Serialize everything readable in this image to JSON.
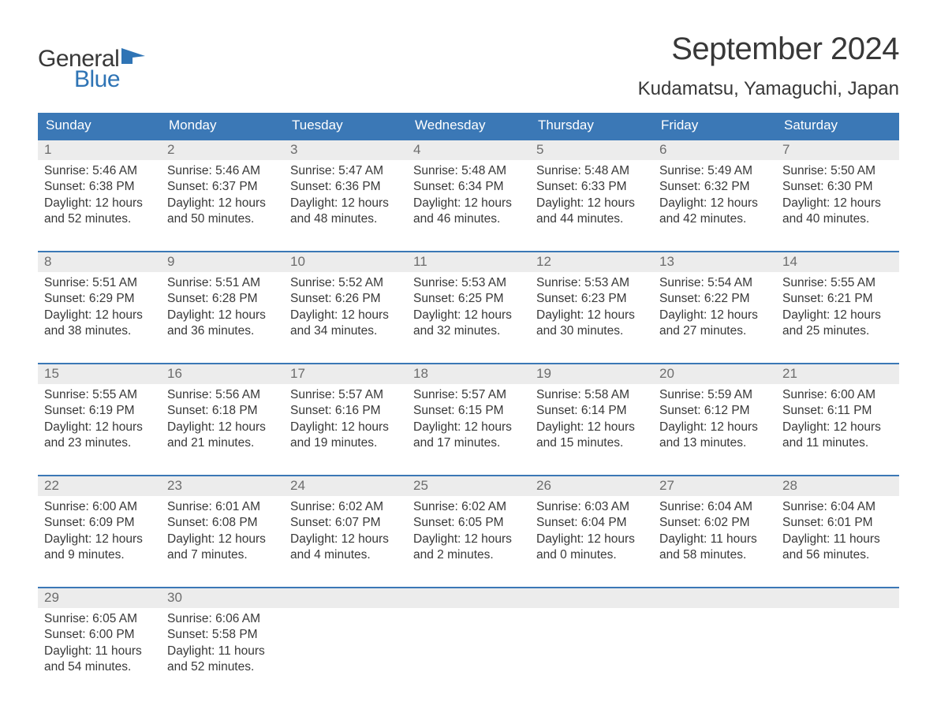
{
  "brand": {
    "general": "General",
    "blue": "Blue"
  },
  "title": "September 2024",
  "location": "Kudamatsu, Yamaguchi, Japan",
  "colors": {
    "header_bg": "#3b78b6",
    "header_text": "#ffffff",
    "daynum_bg": "#ececec",
    "daynum_text": "#6d6d6d",
    "body_text": "#383838",
    "rule": "#3b78b6",
    "brand_blue": "#2f74b5",
    "page_bg": "#ffffff"
  },
  "typography": {
    "title_fontsize": 40,
    "location_fontsize": 24,
    "dow_fontsize": 17,
    "daynum_fontsize": 17,
    "body_fontsize": 15.5,
    "font_family": "Arial"
  },
  "days_of_week": [
    "Sunday",
    "Monday",
    "Tuesday",
    "Wednesday",
    "Thursday",
    "Friday",
    "Saturday"
  ],
  "weeks": [
    [
      {
        "n": "1",
        "sr": "Sunrise: 5:46 AM",
        "ss": "Sunset: 6:38 PM",
        "d1": "Daylight: 12 hours",
        "d2": "and 52 minutes."
      },
      {
        "n": "2",
        "sr": "Sunrise: 5:46 AM",
        "ss": "Sunset: 6:37 PM",
        "d1": "Daylight: 12 hours",
        "d2": "and 50 minutes."
      },
      {
        "n": "3",
        "sr": "Sunrise: 5:47 AM",
        "ss": "Sunset: 6:36 PM",
        "d1": "Daylight: 12 hours",
        "d2": "and 48 minutes."
      },
      {
        "n": "4",
        "sr": "Sunrise: 5:48 AM",
        "ss": "Sunset: 6:34 PM",
        "d1": "Daylight: 12 hours",
        "d2": "and 46 minutes."
      },
      {
        "n": "5",
        "sr": "Sunrise: 5:48 AM",
        "ss": "Sunset: 6:33 PM",
        "d1": "Daylight: 12 hours",
        "d2": "and 44 minutes."
      },
      {
        "n": "6",
        "sr": "Sunrise: 5:49 AM",
        "ss": "Sunset: 6:32 PM",
        "d1": "Daylight: 12 hours",
        "d2": "and 42 minutes."
      },
      {
        "n": "7",
        "sr": "Sunrise: 5:50 AM",
        "ss": "Sunset: 6:30 PM",
        "d1": "Daylight: 12 hours",
        "d2": "and 40 minutes."
      }
    ],
    [
      {
        "n": "8",
        "sr": "Sunrise: 5:51 AM",
        "ss": "Sunset: 6:29 PM",
        "d1": "Daylight: 12 hours",
        "d2": "and 38 minutes."
      },
      {
        "n": "9",
        "sr": "Sunrise: 5:51 AM",
        "ss": "Sunset: 6:28 PM",
        "d1": "Daylight: 12 hours",
        "d2": "and 36 minutes."
      },
      {
        "n": "10",
        "sr": "Sunrise: 5:52 AM",
        "ss": "Sunset: 6:26 PM",
        "d1": "Daylight: 12 hours",
        "d2": "and 34 minutes."
      },
      {
        "n": "11",
        "sr": "Sunrise: 5:53 AM",
        "ss": "Sunset: 6:25 PM",
        "d1": "Daylight: 12 hours",
        "d2": "and 32 minutes."
      },
      {
        "n": "12",
        "sr": "Sunrise: 5:53 AM",
        "ss": "Sunset: 6:23 PM",
        "d1": "Daylight: 12 hours",
        "d2": "and 30 minutes."
      },
      {
        "n": "13",
        "sr": "Sunrise: 5:54 AM",
        "ss": "Sunset: 6:22 PM",
        "d1": "Daylight: 12 hours",
        "d2": "and 27 minutes."
      },
      {
        "n": "14",
        "sr": "Sunrise: 5:55 AM",
        "ss": "Sunset: 6:21 PM",
        "d1": "Daylight: 12 hours",
        "d2": "and 25 minutes."
      }
    ],
    [
      {
        "n": "15",
        "sr": "Sunrise: 5:55 AM",
        "ss": "Sunset: 6:19 PM",
        "d1": "Daylight: 12 hours",
        "d2": "and 23 minutes."
      },
      {
        "n": "16",
        "sr": "Sunrise: 5:56 AM",
        "ss": "Sunset: 6:18 PM",
        "d1": "Daylight: 12 hours",
        "d2": "and 21 minutes."
      },
      {
        "n": "17",
        "sr": "Sunrise: 5:57 AM",
        "ss": "Sunset: 6:16 PM",
        "d1": "Daylight: 12 hours",
        "d2": "and 19 minutes."
      },
      {
        "n": "18",
        "sr": "Sunrise: 5:57 AM",
        "ss": "Sunset: 6:15 PM",
        "d1": "Daylight: 12 hours",
        "d2": "and 17 minutes."
      },
      {
        "n": "19",
        "sr": "Sunrise: 5:58 AM",
        "ss": "Sunset: 6:14 PM",
        "d1": "Daylight: 12 hours",
        "d2": "and 15 minutes."
      },
      {
        "n": "20",
        "sr": "Sunrise: 5:59 AM",
        "ss": "Sunset: 6:12 PM",
        "d1": "Daylight: 12 hours",
        "d2": "and 13 minutes."
      },
      {
        "n": "21",
        "sr": "Sunrise: 6:00 AM",
        "ss": "Sunset: 6:11 PM",
        "d1": "Daylight: 12 hours",
        "d2": "and 11 minutes."
      }
    ],
    [
      {
        "n": "22",
        "sr": "Sunrise: 6:00 AM",
        "ss": "Sunset: 6:09 PM",
        "d1": "Daylight: 12 hours",
        "d2": "and 9 minutes."
      },
      {
        "n": "23",
        "sr": "Sunrise: 6:01 AM",
        "ss": "Sunset: 6:08 PM",
        "d1": "Daylight: 12 hours",
        "d2": "and 7 minutes."
      },
      {
        "n": "24",
        "sr": "Sunrise: 6:02 AM",
        "ss": "Sunset: 6:07 PM",
        "d1": "Daylight: 12 hours",
        "d2": "and 4 minutes."
      },
      {
        "n": "25",
        "sr": "Sunrise: 6:02 AM",
        "ss": "Sunset: 6:05 PM",
        "d1": "Daylight: 12 hours",
        "d2": "and 2 minutes."
      },
      {
        "n": "26",
        "sr": "Sunrise: 6:03 AM",
        "ss": "Sunset: 6:04 PM",
        "d1": "Daylight: 12 hours",
        "d2": "and 0 minutes."
      },
      {
        "n": "27",
        "sr": "Sunrise: 6:04 AM",
        "ss": "Sunset: 6:02 PM",
        "d1": "Daylight: 11 hours",
        "d2": "and 58 minutes."
      },
      {
        "n": "28",
        "sr": "Sunrise: 6:04 AM",
        "ss": "Sunset: 6:01 PM",
        "d1": "Daylight: 11 hours",
        "d2": "and 56 minutes."
      }
    ],
    [
      {
        "n": "29",
        "sr": "Sunrise: 6:05 AM",
        "ss": "Sunset: 6:00 PM",
        "d1": "Daylight: 11 hours",
        "d2": "and 54 minutes."
      },
      {
        "n": "30",
        "sr": "Sunrise: 6:06 AM",
        "ss": "Sunset: 5:58 PM",
        "d1": "Daylight: 11 hours",
        "d2": "and 52 minutes."
      },
      {
        "empty": true
      },
      {
        "empty": true
      },
      {
        "empty": true
      },
      {
        "empty": true
      },
      {
        "empty": true
      }
    ]
  ]
}
